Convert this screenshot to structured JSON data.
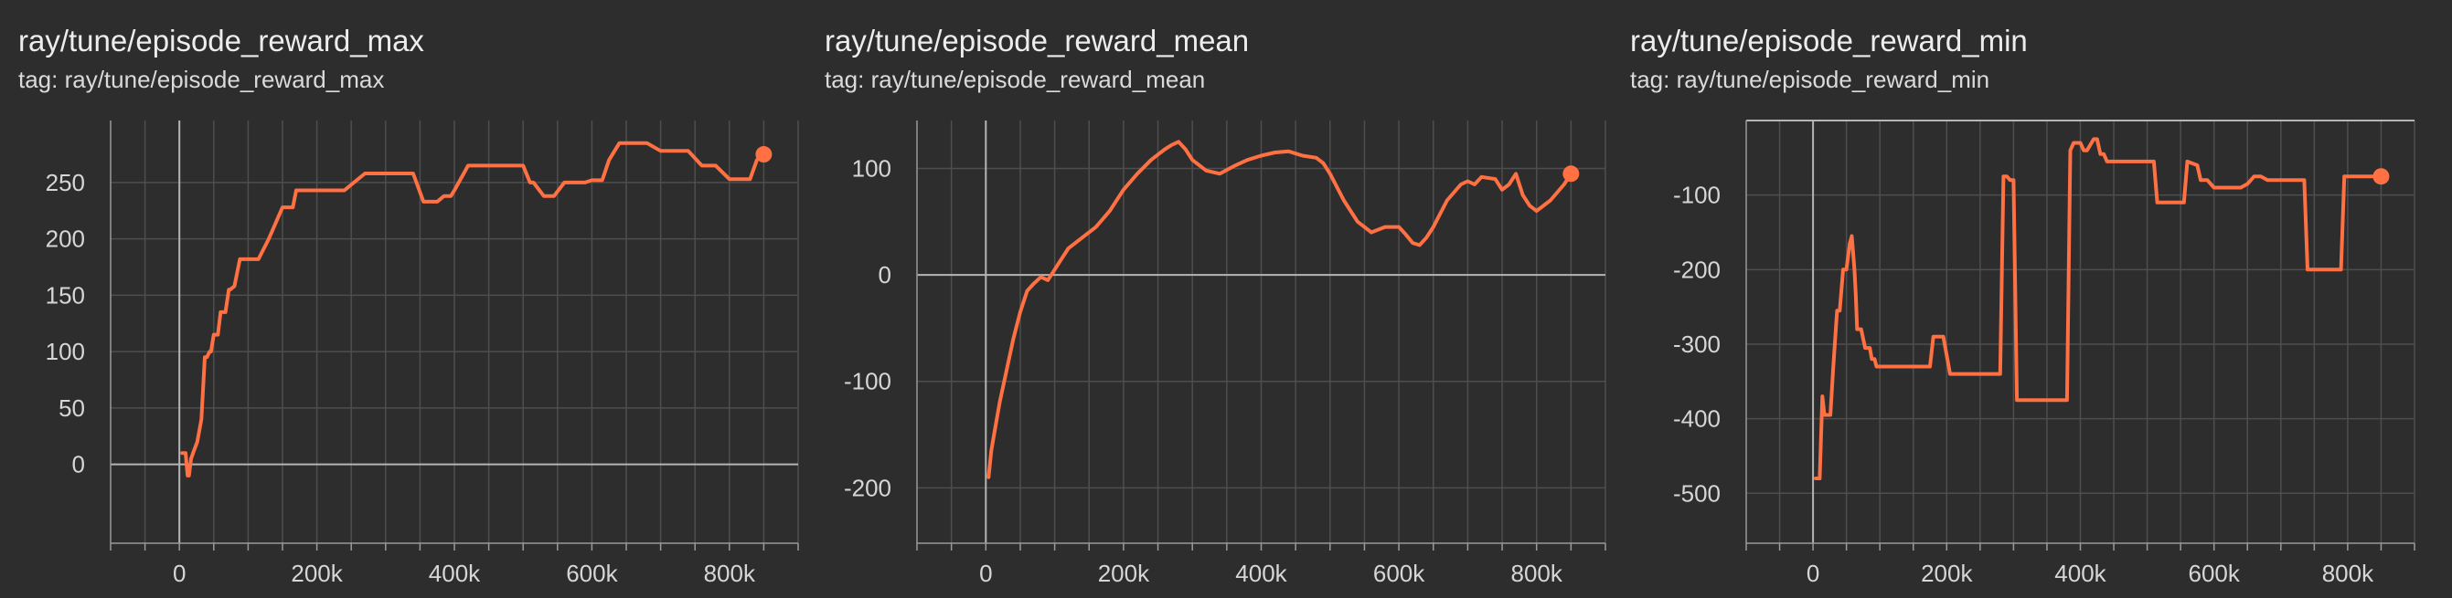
{
  "colors": {
    "background": "#2d2d2d",
    "series": "#ff7043",
    "grid": "#4e4e4e",
    "zero_axis": "#b5b5b5",
    "text": "#e6e6e6"
  },
  "cards": [
    {
      "title": "ray/tune/episode_reward_max",
      "tag": "tag: ray/tune/episode_reward_max"
    },
    {
      "title": "ray/tune/episode_reward_mean",
      "tag": "tag: ray/tune/episode_reward_mean"
    },
    {
      "title": "ray/tune/episode_reward_min",
      "tag": "tag: ray/tune/episode_reward_min"
    }
  ],
  "chart_data": [
    {
      "type": "line",
      "title": "ray/tune/episode_reward_max",
      "subtitle": "tag: ray/tune/episode_reward_max",
      "xlim": [
        -100000,
        900000
      ],
      "ylim": [
        -70,
        305
      ],
      "grid": true,
      "x_ticks": [
        0,
        200000,
        400000,
        600000,
        800000
      ],
      "x_tick_labels": [
        "0",
        "200k",
        "400k",
        "600k",
        "800k"
      ],
      "y_ticks": [
        0,
        50,
        100,
        150,
        200,
        250
      ],
      "y_tick_labels": [
        "0",
        "50",
        "100",
        "150",
        "200",
        "250"
      ],
      "series": [
        {
          "color": "#ff7043",
          "x": [
            4000,
            9000,
            12000,
            14000,
            17000,
            20000,
            26000,
            32000,
            37000,
            40000,
            44000,
            46000,
            50000,
            56000,
            60000,
            62000,
            67000,
            72000,
            74000,
            80000,
            88000,
            95000,
            100000,
            110000,
            115000,
            130000,
            150000,
            165000,
            170000,
            180000,
            190000,
            200000,
            210000,
            240000,
            270000,
            280000,
            300000,
            320000,
            340000,
            355000,
            360000,
            370000,
            375000,
            385000,
            395000,
            400000,
            420000,
            430000,
            440000,
            470000,
            490000,
            500000,
            510000,
            515000,
            530000,
            535000,
            545000,
            560000,
            565000,
            580000,
            590000,
            600000,
            615000,
            625000,
            640000,
            680000,
            700000,
            730000,
            740000,
            760000,
            780000,
            800000,
            820000,
            825000,
            830000,
            840000,
            850000
          ],
          "y": [
            10,
            10,
            -10,
            -10,
            5,
            10,
            20,
            40,
            95,
            95,
            100,
            100,
            115,
            115,
            135,
            135,
            135,
            155,
            155,
            158,
            182,
            182,
            182,
            182,
            182,
            200,
            228,
            228,
            243,
            243,
            243,
            243,
            243,
            243,
            258,
            258,
            258,
            258,
            258,
            233,
            233,
            233,
            233,
            238,
            238,
            243,
            265,
            265,
            265,
            265,
            265,
            265,
            250,
            250,
            238,
            238,
            238,
            250,
            250,
            250,
            250,
            252,
            252,
            270,
            285,
            285,
            278,
            278,
            278,
            265,
            265,
            253,
            253,
            253,
            253,
            270,
            275
          ]
        }
      ]
    },
    {
      "type": "line",
      "title": "ray/tune/episode_reward_mean",
      "subtitle": "tag: ray/tune/episode_reward_mean",
      "xlim": [
        -100000,
        900000
      ],
      "ylim": [
        -252,
        145
      ],
      "grid": true,
      "x_ticks": [
        0,
        200000,
        400000,
        600000,
        800000
      ],
      "x_tick_labels": [
        "0",
        "200k",
        "400k",
        "600k",
        "800k"
      ],
      "y_ticks": [
        -200,
        -100,
        0,
        100
      ],
      "y_tick_labels": [
        "-200",
        "-100",
        "0",
        "100"
      ],
      "series": [
        {
          "color": "#ff7043",
          "x": [
            4000,
            8000,
            12000,
            20000,
            30000,
            40000,
            50000,
            60000,
            70000,
            80000,
            90000,
            100000,
            110000,
            120000,
            140000,
            160000,
            180000,
            200000,
            220000,
            240000,
            260000,
            270000,
            280000,
            290000,
            300000,
            320000,
            340000,
            360000,
            380000,
            400000,
            420000,
            440000,
            460000,
            480000,
            490000,
            500000,
            520000,
            540000,
            560000,
            580000,
            600000,
            610000,
            620000,
            630000,
            640000,
            650000,
            670000,
            690000,
            700000,
            710000,
            720000,
            740000,
            750000,
            760000,
            770000,
            780000,
            790000,
            800000,
            820000,
            840000,
            850000
          ],
          "y": [
            -190,
            -165,
            -150,
            -120,
            -90,
            -60,
            -35,
            -15,
            -8,
            -2,
            -5,
            5,
            15,
            25,
            35,
            45,
            60,
            80,
            95,
            108,
            118,
            122,
            125,
            118,
            108,
            98,
            95,
            102,
            108,
            112,
            115,
            116,
            112,
            110,
            105,
            95,
            70,
            50,
            40,
            45,
            45,
            38,
            30,
            28,
            35,
            45,
            70,
            85,
            88,
            85,
            92,
            90,
            80,
            85,
            95,
            75,
            65,
            60,
            70,
            85,
            95
          ]
        }
      ]
    },
    {
      "type": "line",
      "title": "ray/tune/episode_reward_min",
      "subtitle": "tag: ray/tune/episode_reward_min",
      "xlim": [
        -100000,
        900000
      ],
      "ylim": [
        -567,
        0
      ],
      "grid": true,
      "x_ticks": [
        0,
        200000,
        400000,
        600000,
        800000
      ],
      "x_tick_labels": [
        "0",
        "200k",
        "400k",
        "600k",
        "800k"
      ],
      "y_ticks": [
        -500,
        -400,
        -300,
        -200,
        -100
      ],
      "y_tick_labels": [
        "-500",
        "-400",
        "-300",
        "-200",
        "-100"
      ],
      "series": [
        {
          "color": "#ff7043",
          "x": [
            4000,
            10000,
            14000,
            17000,
            20000,
            26000,
            30000,
            36000,
            40000,
            45000,
            50000,
            55000,
            58000,
            62000,
            64000,
            66000,
            68000,
            72000,
            78000,
            80000,
            85000,
            88000,
            92000,
            95000,
            105000,
            140000,
            175000,
            180000,
            190000,
            195000,
            205000,
            215000,
            270000,
            280000,
            285000,
            290000,
            295000,
            300000,
            305000,
            350000,
            380000,
            385000,
            390000,
            395000,
            400000,
            405000,
            410000,
            420000,
            425000,
            430000,
            435000,
            440000,
            480000,
            510000,
            515000,
            540000,
            555000,
            560000,
            575000,
            580000,
            590000,
            600000,
            620000,
            630000,
            640000,
            650000,
            660000,
            670000,
            680000,
            720000,
            730000,
            735000,
            740000,
            780000,
            785000,
            790000,
            795000,
            800000,
            850000
          ],
          "y": [
            -480,
            -480,
            -370,
            -395,
            -395,
            -395,
            -335,
            -255,
            -255,
            -200,
            -200,
            -165,
            -155,
            -200,
            -235,
            -280,
            -280,
            -280,
            -305,
            -305,
            -305,
            -320,
            -320,
            -330,
            -330,
            -330,
            -330,
            -290,
            -290,
            -290,
            -340,
            -340,
            -340,
            -340,
            -75,
            -75,
            -80,
            -80,
            -375,
            -375,
            -375,
            -40,
            -30,
            -30,
            -30,
            -40,
            -40,
            -25,
            -25,
            -45,
            -45,
            -55,
            -55,
            -55,
            -110,
            -110,
            -110,
            -55,
            -60,
            -80,
            -80,
            -90,
            -90,
            -90,
            -90,
            -85,
            -75,
            -75,
            -80,
            -80,
            -80,
            -80,
            -200,
            -200,
            -200,
            -200,
            -75,
            -75,
            -75
          ]
        }
      ]
    }
  ]
}
